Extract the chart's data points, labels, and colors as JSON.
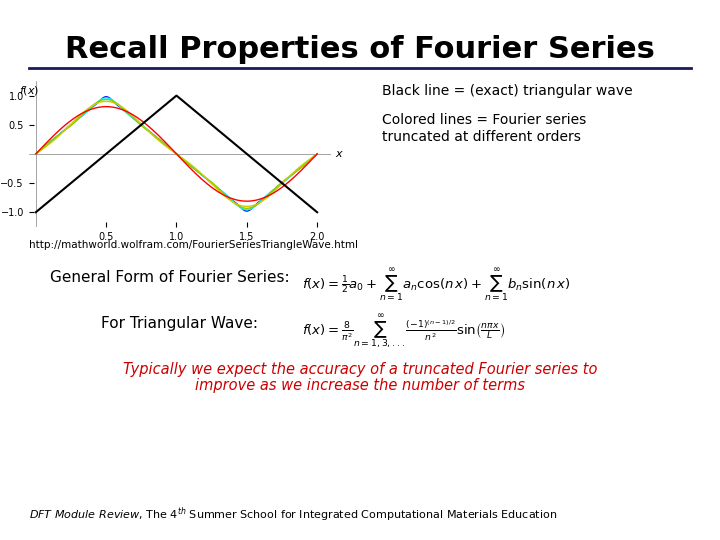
{
  "title": "Recall Properties of Fourier Series",
  "title_fontsize": 22,
  "title_fontweight": "bold",
  "title_font": "Arial Narrow",
  "line_color": "#1a1a2e",
  "rule_color": "#1a1a5e",
  "text1": "Black line = (exact) triangular wave",
  "text2_line1": "Colored lines = Fourier series",
  "text2_line2": "truncated at different orders",
  "url": "http://mathworld.wolfram.com/FourierSeriesTriangleWave.html",
  "general_label": "General Form of Fourier Series:",
  "triangular_label": "For Triangular Wave:",
  "italic_text_line1": "Typically we expect the accuracy of a truncated Fourier series to",
  "italic_text_line2": "improve as we increase the number of terms",
  "footer_normal": "DFT Module Review",
  "footer_rest": ", The 4",
  "footer_super": "th",
  "footer_end": " Summer School for Integrated Computational Materials Education",
  "plot_colors": [
    "black",
    "red",
    "yellow",
    "green",
    "cyan",
    "blue",
    "purple"
  ],
  "bg_color": "#ffffff"
}
